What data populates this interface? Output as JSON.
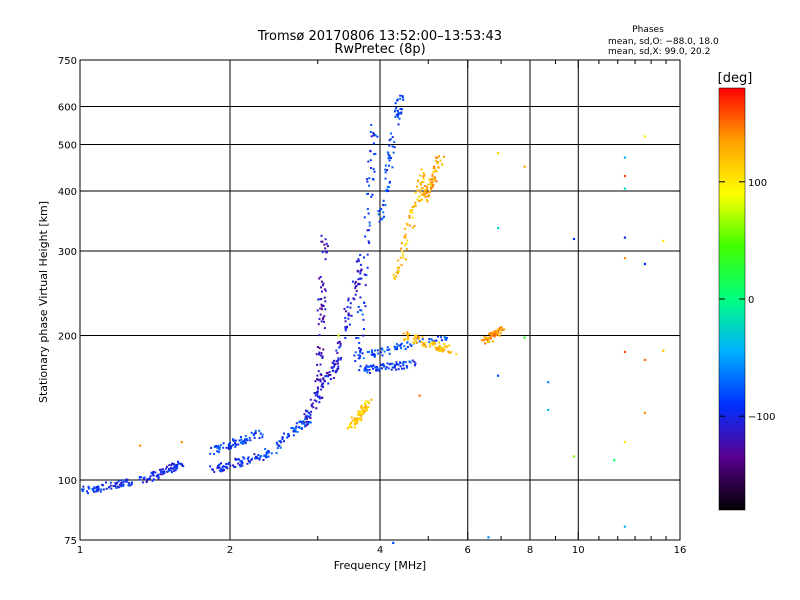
{
  "chart_data": {
    "type": "scatter",
    "title": "Tromsø 20170806 13:52:00–13:53:43",
    "subtitle": "RwPretec (8p)",
    "xlabel": "Frequency [MHz]",
    "ylabel": "Stationary phase Virtual Height [km]",
    "x_scale": "log",
    "y_scale": "log",
    "xlim": [
      1,
      16
    ],
    "ylim": [
      75,
      750
    ],
    "x_ticks": [
      1,
      2,
      4,
      6,
      8,
      10,
      16
    ],
    "x_tick_labels": [
      "1",
      "2",
      "4",
      "6",
      "8",
      "10",
      "16"
    ],
    "x_minor_ticks": [
      3,
      5,
      7,
      9,
      11,
      12,
      13,
      14,
      15
    ],
    "x_gridlines": [
      2,
      4,
      6,
      8,
      10
    ],
    "y_ticks": [
      75,
      100,
      200,
      300,
      400,
      500,
      600,
      750
    ],
    "y_tick_labels": [
      "75",
      "100",
      "200",
      "300",
      "400",
      "500",
      "600",
      "750"
    ],
    "y_gridlines": [
      100,
      200,
      300,
      400,
      500,
      600
    ],
    "grid": true,
    "phases_box": {
      "title": "Phases",
      "line1": "mean, sd,O: −88.0, 18.0",
      "line2": "mean, sd,X:  99.0, 20.2"
    },
    "colorbar": {
      "label": "[deg]",
      "range": [
        -180,
        180
      ],
      "ticks": [
        100,
        0,
        -100
      ],
      "tick_labels": [
        "100",
        "0",
        "−100"
      ],
      "colormap": "rainbow",
      "stops": [
        "#000000",
        "#5a0090",
        "#0030ff",
        "#00b0ff",
        "#00ff80",
        "#40ff00",
        "#ffff00",
        "#ffa000",
        "#ff0000"
      ]
    },
    "trace_segments": [
      {
        "from": [
          1.0,
          95
        ],
        "to": [
          1.35,
          100
        ],
        "phase": -95
      },
      {
        "from": [
          1.35,
          100
        ],
        "to": [
          1.6,
          108
        ],
        "phase": -100
      },
      {
        "from": [
          1.85,
          105
        ],
        "to": [
          2.3,
          112
        ],
        "phase": -95
      },
      {
        "from": [
          1.85,
          115
        ],
        "to": [
          2.3,
          125
        ],
        "phase": -85
      },
      {
        "from": [
          2.3,
          110
        ],
        "to": [
          2.9,
          135
        ],
        "phase": -80
      },
      {
        "from": [
          2.8,
          130
        ],
        "to": [
          3.3,
          180
        ],
        "phase": -110
      },
      {
        "from": [
          3.0,
          150
        ],
        "to": [
          3.1,
          320
        ],
        "phase": -120
      },
      {
        "from": [
          3.2,
          160
        ],
        "to": [
          3.7,
          300
        ],
        "phase": -110
      },
      {
        "from": [
          3.6,
          170
        ],
        "to": [
          3.9,
          550
        ],
        "phase": -90
      },
      {
        "from": [
          4.0,
          350
        ],
        "to": [
          4.4,
          640
        ],
        "phase": -85
      },
      {
        "from": [
          3.6,
          180
        ],
        "to": [
          5.5,
          200
        ],
        "phase": -80
      },
      {
        "from": [
          3.7,
          170
        ],
        "to": [
          4.7,
          175
        ],
        "phase": -90
      },
      {
        "from": [
          4.3,
          260
        ],
        "to": [
          4.9,
          440
        ],
        "phase": 120
      },
      {
        "from": [
          4.9,
          380
        ],
        "to": [
          5.3,
          470
        ],
        "phase": 130
      },
      {
        "from": [
          4.5,
          200
        ],
        "to": [
          5.6,
          185
        ],
        "phase": 125
      },
      {
        "from": [
          6.5,
          195
        ],
        "to": [
          7.0,
          205
        ],
        "phase": 140
      },
      {
        "from": [
          3.5,
          130
        ],
        "to": [
          3.8,
          145
        ],
        "phase": 115
      }
    ],
    "scatter_points": [
      {
        "x": 1.32,
        "y": 118,
        "phase": 140
      },
      {
        "x": 1.6,
        "y": 120,
        "phase": 140
      },
      {
        "x": 3.3,
        "y": 200,
        "phase": 80
      },
      {
        "x": 4.8,
        "y": 150,
        "phase": 150
      },
      {
        "x": 6.9,
        "y": 480,
        "phase": 110
      },
      {
        "x": 7.8,
        "y": 450,
        "phase": 130
      },
      {
        "x": 6.9,
        "y": 335,
        "phase": -20
      },
      {
        "x": 6.9,
        "y": 165,
        "phase": -80
      },
      {
        "x": 7.8,
        "y": 198,
        "phase": 30
      },
      {
        "x": 8.7,
        "y": 160,
        "phase": -60
      },
      {
        "x": 8.7,
        "y": 140,
        "phase": -40
      },
      {
        "x": 9.8,
        "y": 318,
        "phase": -90
      },
      {
        "x": 9.8,
        "y": 112,
        "phase": 60
      },
      {
        "x": 11.8,
        "y": 110,
        "phase": 0
      },
      {
        "x": 12.4,
        "y": 470,
        "phase": -40
      },
      {
        "x": 12.4,
        "y": 430,
        "phase": 160
      },
      {
        "x": 12.4,
        "y": 405,
        "phase": -20
      },
      {
        "x": 12.4,
        "y": 320,
        "phase": -100
      },
      {
        "x": 12.4,
        "y": 290,
        "phase": 140
      },
      {
        "x": 12.4,
        "y": 185,
        "phase": 160
      },
      {
        "x": 12.4,
        "y": 120,
        "phase": 100
      },
      {
        "x": 12.4,
        "y": 80,
        "phase": -40
      },
      {
        "x": 13.6,
        "y": 520,
        "phase": 100
      },
      {
        "x": 13.6,
        "y": 282,
        "phase": -90
      },
      {
        "x": 13.6,
        "y": 178,
        "phase": 150
      },
      {
        "x": 13.6,
        "y": 138,
        "phase": 140
      },
      {
        "x": 14.8,
        "y": 315,
        "phase": 100
      },
      {
        "x": 14.8,
        "y": 186,
        "phase": 120
      },
      {
        "x": 4.25,
        "y": 74,
        "phase": -80
      },
      {
        "x": 6.6,
        "y": 76,
        "phase": -60
      }
    ]
  }
}
